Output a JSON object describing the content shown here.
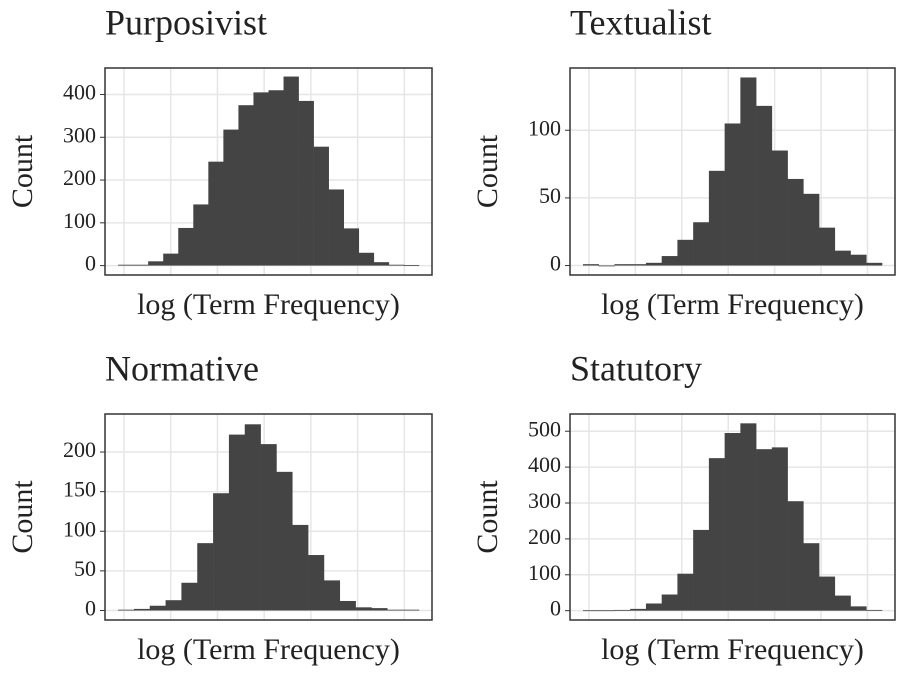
{
  "chart_data": [
    {
      "type": "bar",
      "title": "Purposivist",
      "xlabel": "log (Term Frequency)",
      "ylabel": "Count",
      "color": "#444444",
      "grid": true,
      "categories": [
        null,
        null,
        null,
        null,
        null,
        null,
        null,
        null,
        null,
        null,
        null,
        null,
        null,
        null,
        null,
        null,
        null,
        null,
        null,
        null
      ],
      "values": [
        2,
        2,
        10,
        28,
        88,
        143,
        243,
        318,
        375,
        405,
        410,
        442,
        385,
        278,
        178,
        87,
        30,
        8,
        2,
        1
      ],
      "ylim": [
        -22,
        462
      ],
      "yticks": [
        0,
        100,
        200,
        300,
        400
      ]
    },
    {
      "type": "bar",
      "title": "Textualist",
      "xlabel": "log (Term Frequency)",
      "ylabel": "Count",
      "color": "#444444",
      "grid": true,
      "categories": [
        null,
        null,
        null,
        null,
        null,
        null,
        null,
        null,
        null,
        null,
        null,
        null,
        null,
        null,
        null,
        null,
        null,
        null,
        null
      ],
      "values": [
        1,
        0,
        1,
        1,
        2,
        7,
        19,
        32,
        70,
        105,
        139,
        118,
        85,
        64,
        53,
        28,
        11,
        8,
        2
      ],
      "ylim": [
        -7,
        146
      ],
      "yticks": [
        0,
        50,
        100
      ]
    },
    {
      "type": "bar",
      "title": "Normative",
      "xlabel": "log (Term Frequency)",
      "ylabel": "Count",
      "color": "#444444",
      "grid": true,
      "categories": [
        null,
        null,
        null,
        null,
        null,
        null,
        null,
        null,
        null,
        null,
        null,
        null,
        null,
        null,
        null,
        null,
        null,
        null,
        null
      ],
      "values": [
        1,
        2,
        6,
        13,
        35,
        85,
        148,
        222,
        235,
        210,
        175,
        108,
        70,
        38,
        12,
        4,
        3,
        1,
        1
      ],
      "ylim": [
        -12,
        248
      ],
      "yticks": [
        0,
        50,
        100,
        150,
        200
      ]
    },
    {
      "type": "bar",
      "title": "Statutory",
      "xlabel": "log (Term Frequency)",
      "ylabel": "Count",
      "color": "#444444",
      "grid": true,
      "categories": [
        null,
        null,
        null,
        null,
        null,
        null,
        null,
        null,
        null,
        null,
        null,
        null,
        null,
        null,
        null,
        null,
        null,
        null,
        null
      ],
      "values": [
        1,
        1,
        2,
        5,
        20,
        45,
        103,
        225,
        425,
        495,
        522,
        450,
        455,
        305,
        188,
        95,
        42,
        12,
        2
      ],
      "ylim": [
        -26,
        548
      ],
      "yticks": [
        0,
        100,
        200,
        300,
        400,
        500
      ]
    }
  ]
}
